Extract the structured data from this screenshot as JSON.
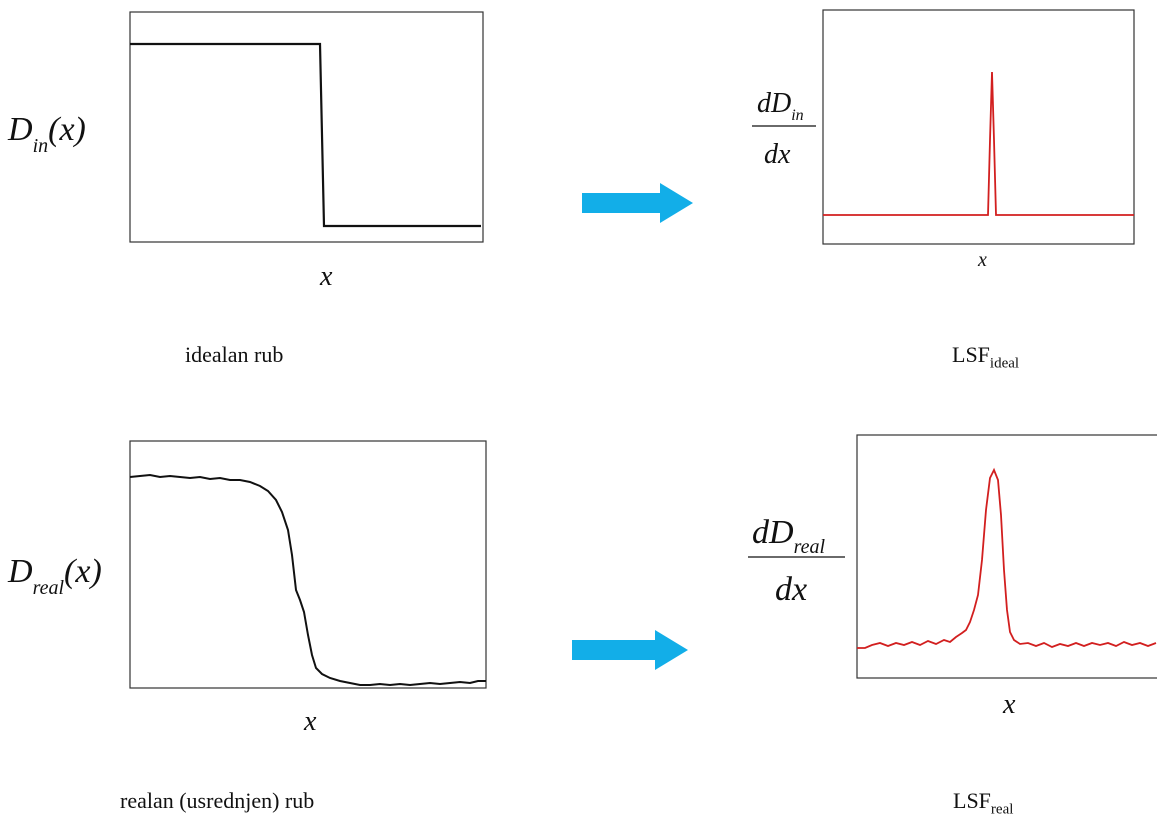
{
  "colors": {
    "edge_curve": "#111111",
    "lsf_curve": "#d21f1f",
    "arrow": "#12aee8",
    "frame": "#333333"
  },
  "panels": {
    "ideal_edge": {
      "ylabel_main": "D",
      "ylabel_sub": "in",
      "ylabel_arg": "(x)",
      "xlabel": "x",
      "caption": "idealan rub"
    },
    "ideal_lsf": {
      "ylabel_num_main": "dD",
      "ylabel_num_sub": "in",
      "ylabel_den": "dx",
      "xlabel": "x",
      "caption_main": "LSF",
      "caption_sub": "ideal"
    },
    "real_edge": {
      "ylabel_main": "D",
      "ylabel_sub": "real",
      "ylabel_arg": "(x)",
      "xlabel": "x",
      "caption": "realan (usrednjen) rub"
    },
    "real_lsf": {
      "ylabel_num_main": "dD",
      "ylabel_num_sub": "real",
      "ylabel_den": "dx",
      "xlabel": "x",
      "caption_main": "LSF",
      "caption_sub": "real"
    }
  },
  "arrows": [
    {
      "name": "arrow-top",
      "icon": "right-arrow-icon"
    },
    {
      "name": "arrow-bottom",
      "icon": "right-arrow-icon"
    }
  ]
}
